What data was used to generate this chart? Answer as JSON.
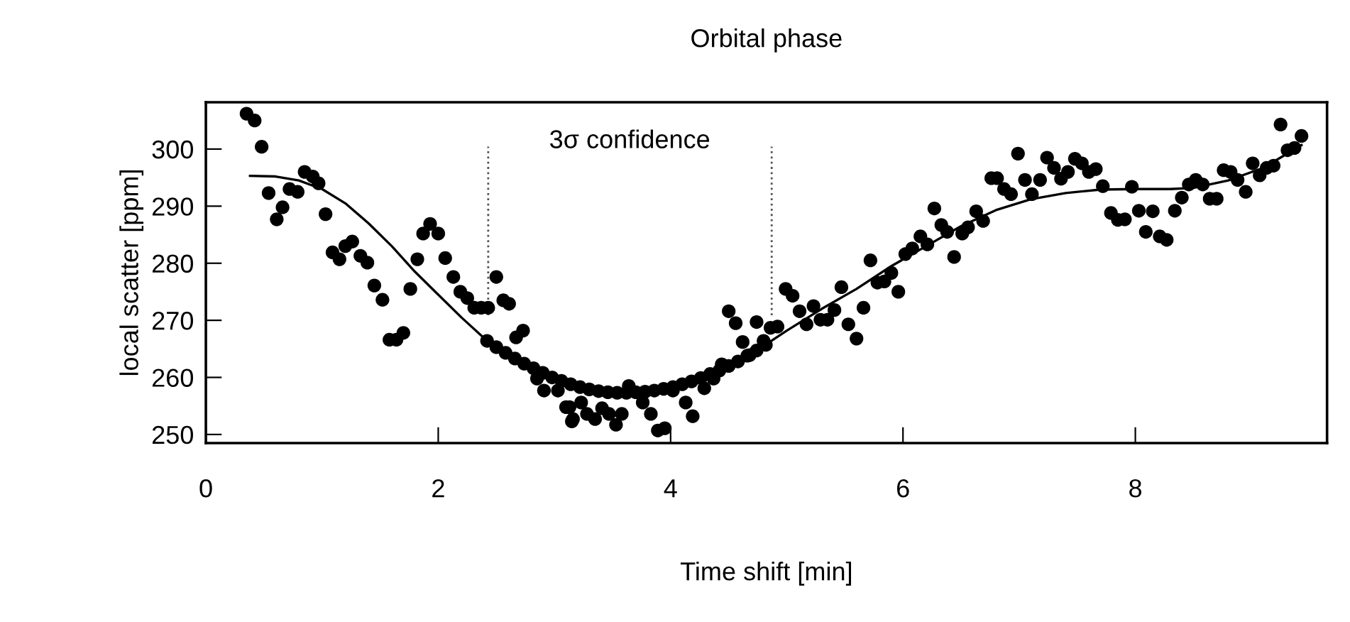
{
  "chart_data": {
    "type": "scatter",
    "title": "Orbital phase",
    "xlabel": "Time shift [min]",
    "ylabel": "local scatter [ppm]",
    "xlim": [
      0,
      9.65
    ],
    "ylim": [
      248.5,
      308.2
    ],
    "xticks": [
      0,
      2,
      4,
      6,
      8
    ],
    "yticks": [
      250,
      260,
      270,
      280,
      290,
      300
    ],
    "grid": false,
    "legend": false,
    "marker": "circle",
    "ref_lines": [
      {
        "axis": "x",
        "value": 2.43,
        "line_style": "dotted",
        "color": "#555555"
      },
      {
        "axis": "x",
        "value": 4.87,
        "line_style": "dotted",
        "color": "#555555"
      }
    ],
    "annotations": [
      "3σ confidence"
    ],
    "series": [
      {
        "color": "#000000",
        "x": [
          0.35,
          0.42,
          0.48,
          0.54,
          0.61,
          0.66,
          0.72,
          0.79,
          0.85,
          0.92,
          0.97,
          1.03,
          1.09,
          1.15,
          1.2,
          1.26,
          1.33,
          1.39,
          1.45,
          1.52,
          1.58,
          1.64,
          1.7,
          1.76,
          1.82,
          1.87,
          1.93,
          2.0,
          2.06,
          2.13,
          2.19,
          2.25,
          2.31,
          2.37,
          2.43,
          2.5,
          2.56,
          2.61,
          2.67,
          2.73,
          2.85,
          2.91,
          3.03,
          3.1,
          3.15,
          3.13,
          3.16,
          3.23,
          3.28,
          3.35,
          3.41,
          3.47,
          3.53,
          3.58,
          3.64,
          3.76,
          3.83,
          3.89,
          3.95,
          4.02,
          4.13,
          4.19,
          4.29,
          4.37,
          4.44,
          4.5,
          4.56,
          4.62,
          4.68,
          4.74,
          4.8,
          4.86,
          4.92,
          4.99,
          5.05,
          5.11,
          5.17,
          5.23,
          5.29,
          5.35,
          5.41,
          5.47,
          5.53,
          5.6,
          5.66,
          5.72,
          5.78,
          5.84,
          5.9,
          5.96,
          6.02,
          6.08,
          6.15,
          6.21,
          6.27,
          6.33,
          6.38,
          6.44,
          6.51,
          6.56,
          6.63,
          6.69,
          6.76,
          6.81,
          6.87,
          6.93,
          6.99,
          7.05,
          7.11,
          7.18,
          7.24,
          7.3,
          7.36,
          7.42,
          7.48,
          7.54,
          7.6,
          7.66,
          7.72,
          7.79,
          7.85,
          7.91,
          7.97,
          8.03,
          8.09,
          8.15,
          8.21,
          8.27,
          8.34,
          8.4,
          8.46,
          8.52,
          8.58,
          8.64,
          8.7,
          8.76,
          8.82,
          8.88,
          8.95,
          9.01,
          9.07,
          9.13,
          9.19,
          9.25,
          9.31,
          9.37,
          9.43
        ],
        "values": [
          306.2,
          305,
          300.4,
          292.3,
          287.7,
          289.8,
          293,
          292.5,
          296,
          295.2,
          294,
          288.6,
          281.9,
          280.7,
          283,
          283.8,
          281.3,
          280.1,
          276.1,
          273.6,
          266.6,
          266.6,
          267.8,
          275.5,
          280.7,
          285.2,
          286.9,
          285.2,
          280.9,
          277.6,
          275,
          273.9,
          272.2,
          272.2,
          272.2,
          277.6,
          273.5,
          272.9,
          267,
          268.2,
          259.8,
          257.7,
          257.7,
          254.8,
          252.3,
          254.8,
          252.7,
          255.6,
          253.6,
          252.7,
          254.6,
          253.6,
          251.7,
          253.6,
          258.5,
          255.6,
          253.6,
          250.7,
          251.1,
          257.7,
          255.6,
          253.2,
          258.1,
          259.8,
          262.3,
          271.6,
          269.5,
          266.2,
          263.9,
          269.7,
          266.4,
          268.7,
          268.9,
          275.5,
          274.3,
          271.6,
          269.3,
          272.5,
          270.1,
          270.1,
          271.8,
          275.8,
          269.3,
          266.8,
          272.2,
          280.5,
          276.6,
          276.8,
          278.3,
          275,
          281.6,
          282.6,
          284.7,
          283.3,
          289.6,
          286.7,
          285.5,
          281.1,
          285.2,
          286.3,
          289.1,
          287.4,
          294.9,
          294.9,
          293,
          292.1,
          299.2,
          294.6,
          292.1,
          294.6,
          298.5,
          296.7,
          294.8,
          296,
          298.3,
          297.5,
          296,
          296.5,
          293.5,
          288.8,
          287.6,
          287.7,
          293.4,
          289.2,
          285.5,
          289.1,
          284.7,
          284.1,
          289.2,
          291.5,
          293.8,
          294.6,
          293.8,
          291.3,
          291.3,
          296.3,
          296,
          294.6,
          292.5,
          297.5,
          295.4,
          296.7,
          297.1,
          304.3,
          299.8,
          300.2,
          302.3
        ]
      },
      {
        "color": "#000000",
        "x": [
          2.42,
          2.5,
          2.58,
          2.66,
          2.74,
          2.82,
          2.9,
          2.98,
          3.06,
          3.14,
          3.22,
          3.3,
          3.38,
          3.46,
          3.54,
          3.62,
          3.7,
          3.78,
          3.86,
          3.94,
          4.02,
          4.1,
          4.18,
          4.26,
          4.34,
          4.42,
          4.5,
          4.58,
          4.66,
          4.74,
          4.82
        ],
        "values": [
          266.4,
          265.3,
          264.3,
          263.3,
          262.4,
          261.6,
          260.8,
          260.0,
          259.4,
          258.8,
          258.3,
          257.9,
          257.6,
          257.4,
          257.3,
          257.3,
          257.4,
          257.5,
          257.7,
          258.0,
          258.3,
          258.8,
          259.3,
          259.9,
          260.6,
          261.2,
          262.0,
          262.8,
          263.8,
          264.7,
          265.7
        ]
      },
      {
        "type": "line",
        "color": "#000000",
        "line_style": "solid",
        "marker": "none",
        "x": [
          0.38,
          0.6,
          0.8,
          1.0,
          1.2,
          1.4,
          1.6,
          1.8,
          2.0,
          2.2,
          2.42,
          2.6,
          2.8,
          3.0,
          3.2,
          3.4,
          3.6,
          3.8,
          4.0,
          4.2,
          4.4,
          4.6,
          4.8,
          5.0,
          5.3,
          5.6,
          5.9,
          6.2,
          6.5,
          6.8,
          7.1,
          7.4,
          7.7,
          8.0,
          8.3,
          8.5,
          8.8,
          9.1,
          9.43
        ],
        "values": [
          295.3,
          295.2,
          294.5,
          293,
          290.5,
          287,
          283,
          278.5,
          274.5,
          270.5,
          266.4,
          264,
          261.8,
          259.8,
          258.4,
          257.6,
          257.3,
          257.5,
          258.2,
          259.4,
          261,
          263,
          265.5,
          268.2,
          272,
          275.5,
          279.5,
          283,
          286.5,
          289.3,
          291.2,
          292.3,
          292.9,
          293,
          293,
          293.2,
          294.5,
          296.7,
          300.7
        ]
      }
    ]
  }
}
